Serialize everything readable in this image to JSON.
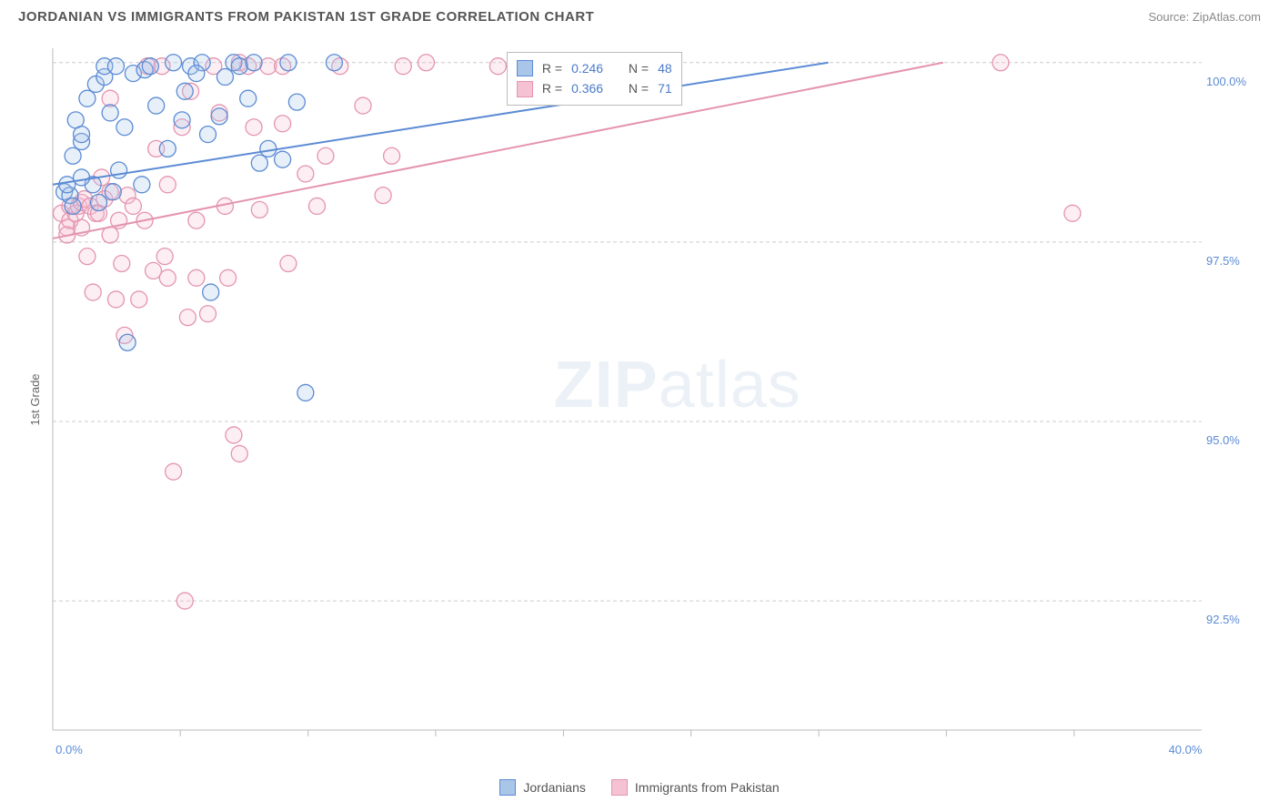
{
  "title": "JORDANIAN VS IMMIGRANTS FROM PAKISTAN 1ST GRADE CORRELATION CHART",
  "source": "Source: ZipAtlas.com",
  "ylabel": "1st Grade",
  "watermark_a": "ZIP",
  "watermark_b": "atlas",
  "chart": {
    "type": "scatter",
    "background_color": "#ffffff",
    "grid_color": "#cccccc",
    "axis_color": "#bbbbbb",
    "tick_label_color": "#5b8bd4",
    "xlim": [
      0.0,
      40.0
    ],
    "ylim": [
      90.7,
      100.2
    ],
    "xticks": [
      0.0,
      40.0
    ],
    "xtick_labels": [
      "0.0%",
      "40.0%"
    ],
    "xtick_minor": [
      4.44,
      8.89,
      13.33,
      17.78,
      22.22,
      26.67,
      31.11,
      35.56
    ],
    "yticks": [
      92.5,
      95.0,
      97.5,
      100.0
    ],
    "ytick_labels": [
      "92.5%",
      "95.0%",
      "97.5%",
      "100.0%"
    ],
    "marker_radius": 9,
    "marker_fill_opacity": 0.28
  },
  "series_a": {
    "label": "Jordanians",
    "color_stroke": "#5b8bd4",
    "color_fill": "#a9c5e8",
    "R": "0.246",
    "N": "48",
    "reg_line": {
      "x1": 0.0,
      "y1": 98.3,
      "x2": 27.0,
      "y2": 100.0
    },
    "points": [
      [
        0.4,
        98.2
      ],
      [
        0.6,
        98.15
      ],
      [
        0.5,
        98.3
      ],
      [
        0.7,
        98.0
      ],
      [
        0.8,
        99.2
      ],
      [
        1.0,
        98.9
      ],
      [
        1.2,
        99.5
      ],
      [
        1.4,
        98.3
      ],
      [
        1.5,
        99.7
      ],
      [
        1.6,
        98.05
      ],
      [
        1.0,
        99.0
      ],
      [
        1.8,
        99.8
      ],
      [
        2.0,
        99.3
      ],
      [
        2.1,
        98.2
      ],
      [
        2.3,
        98.5
      ],
      [
        1.0,
        98.4
      ],
      [
        2.5,
        99.1
      ],
      [
        2.6,
        96.1
      ],
      [
        2.8,
        99.85
      ],
      [
        0.7,
        98.7
      ],
      [
        3.1,
        98.3
      ],
      [
        3.2,
        99.9
      ],
      [
        3.4,
        99.95
      ],
      [
        3.6,
        99.4
      ],
      [
        1.8,
        99.95
      ],
      [
        4.0,
        98.8
      ],
      [
        4.2,
        100.0
      ],
      [
        4.5,
        99.2
      ],
      [
        4.8,
        99.95
      ],
      [
        2.2,
        99.95
      ],
      [
        5.2,
        100.0
      ],
      [
        5.4,
        99.0
      ],
      [
        5.5,
        96.8
      ],
      [
        5.8,
        99.25
      ],
      [
        6.0,
        99.8
      ],
      [
        6.3,
        100.0
      ],
      [
        6.5,
        99.95
      ],
      [
        7.0,
        100.0
      ],
      [
        7.2,
        98.6
      ],
      [
        7.5,
        98.8
      ],
      [
        8.0,
        98.65
      ],
      [
        8.2,
        100.0
      ],
      [
        8.5,
        99.45
      ],
      [
        8.8,
        95.4
      ],
      [
        9.8,
        100.0
      ],
      [
        4.6,
        99.6
      ],
      [
        6.8,
        99.5
      ],
      [
        5.0,
        99.85
      ]
    ]
  },
  "series_b": {
    "label": "Immigants from Pakistan",
    "color_stroke": "#e494b0",
    "color_fill": "#f4c2d3",
    "R": "0.366",
    "N": "71",
    "reg_line": {
      "x1": 0.0,
      "y1": 97.55,
      "x2": 31.0,
      "y2": 100.0
    },
    "points": [
      [
        0.3,
        97.9
      ],
      [
        0.5,
        97.7
      ],
      [
        0.6,
        98.0
      ],
      [
        0.6,
        97.8
      ],
      [
        0.8,
        97.9
      ],
      [
        0.9,
        98.0
      ],
      [
        0.5,
        97.6
      ],
      [
        1.0,
        98.05
      ],
      [
        1.0,
        97.7
      ],
      [
        1.1,
        98.1
      ],
      [
        1.2,
        97.3
      ],
      [
        1.3,
        98.0
      ],
      [
        1.4,
        96.8
      ],
      [
        1.5,
        97.9
      ],
      [
        1.6,
        97.9
      ],
      [
        1.7,
        98.4
      ],
      [
        1.8,
        98.1
      ],
      [
        2.0,
        97.6
      ],
      [
        2.0,
        98.2
      ],
      [
        2.2,
        96.7
      ],
      [
        2.3,
        97.8
      ],
      [
        2.4,
        97.2
      ],
      [
        2.5,
        96.2
      ],
      [
        2.6,
        98.15
      ],
      [
        2.8,
        98.0
      ],
      [
        3.0,
        96.7
      ],
      [
        3.2,
        97.8
      ],
      [
        3.3,
        99.95
      ],
      [
        3.5,
        97.1
      ],
      [
        3.6,
        98.8
      ],
      [
        3.8,
        99.95
      ],
      [
        3.9,
        97.3
      ],
      [
        4.0,
        97.0
      ],
      [
        4.0,
        98.3
      ],
      [
        4.2,
        94.3
      ],
      [
        4.5,
        99.1
      ],
      [
        4.7,
        96.45
      ],
      [
        4.8,
        99.6
      ],
      [
        5.0,
        97.8
      ],
      [
        5.0,
        97.0
      ],
      [
        5.4,
        96.5
      ],
      [
        5.6,
        99.95
      ],
      [
        5.8,
        99.3
      ],
      [
        6.0,
        98.0
      ],
      [
        6.1,
        97.0
      ],
      [
        6.3,
        94.81
      ],
      [
        6.5,
        100.0
      ],
      [
        6.5,
        94.55
      ],
      [
        6.8,
        99.95
      ],
      [
        7.0,
        99.1
      ],
      [
        7.2,
        97.95
      ],
      [
        7.5,
        99.95
      ],
      [
        4.6,
        92.5
      ],
      [
        8.0,
        99.95
      ],
      [
        8.0,
        99.15
      ],
      [
        8.2,
        97.2
      ],
      [
        8.8,
        98.45
      ],
      [
        9.2,
        98.0
      ],
      [
        9.5,
        98.7
      ],
      [
        10.0,
        99.95
      ],
      [
        10.8,
        99.4
      ],
      [
        11.5,
        98.15
      ],
      [
        12.2,
        99.95
      ],
      [
        11.8,
        98.7
      ],
      [
        13.0,
        100.0
      ],
      [
        15.5,
        99.95
      ],
      [
        17.3,
        99.95
      ],
      [
        18.0,
        100.0
      ],
      [
        33.0,
        100.0
      ],
      [
        35.5,
        97.9
      ],
      [
        2.0,
        99.5
      ]
    ]
  },
  "stats_legend": {
    "r_label": "R =",
    "n_label": "N ="
  },
  "bottom_legend": {
    "a": "Jordanians",
    "b": "Immigrants from Pakistan"
  }
}
